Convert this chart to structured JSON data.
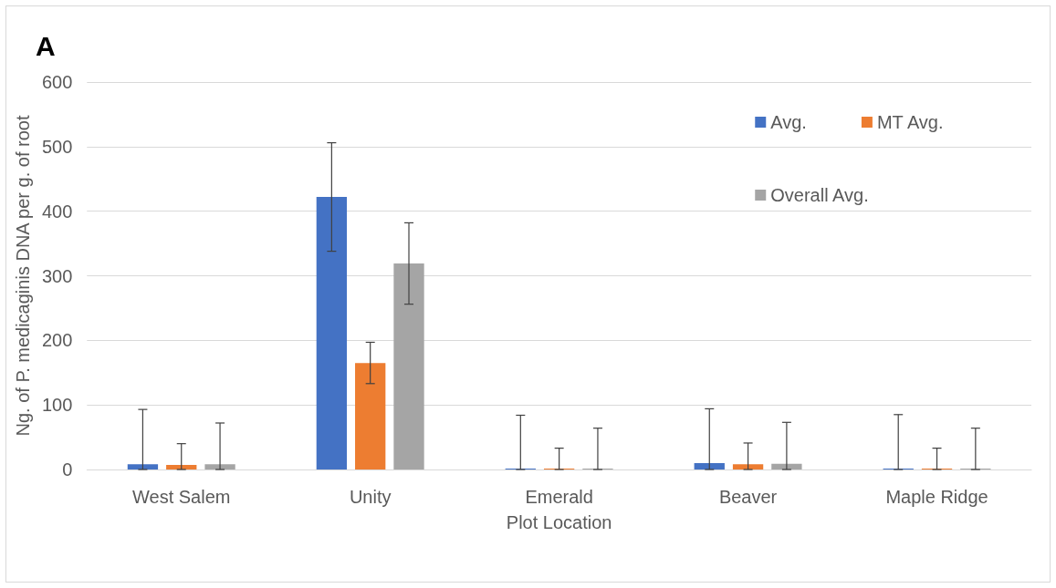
{
  "chart_data": {
    "type": "bar",
    "title": null,
    "annotations": [
      "A"
    ],
    "xlabel": "Plot Location",
    "ylabel": "Ng. of P. medicaginis DNA per g. of root",
    "categories": [
      "West Salem",
      "Unity",
      "Emerald",
      "Beaver",
      "Maple Ridge"
    ],
    "series": [
      {
        "name": "Avg.",
        "color": "#4472c4",
        "values": [
          8,
          422,
          0,
          10,
          0
        ],
        "errors": [
          [
            0,
            93
          ],
          84,
          [
            0,
            84
          ],
          [
            0,
            94
          ],
          [
            0,
            85
          ]
        ]
      },
      {
        "name": "MT Avg.",
        "color": "#ed7d31",
        "values": [
          7,
          165,
          0,
          8,
          0
        ],
        "errors": [
          [
            0,
            40
          ],
          32,
          [
            0,
            33
          ],
          [
            0,
            41
          ],
          [
            0,
            33
          ]
        ]
      },
      {
        "name": "Overall Avg.",
        "color": "#a5a5a5",
        "values": [
          8,
          319,
          0,
          9,
          0
        ],
        "errors": [
          [
            0,
            72
          ],
          63,
          [
            0,
            64
          ],
          [
            0,
            73
          ],
          [
            0,
            64
          ]
        ]
      }
    ],
    "ylim": [
      0,
      600
    ],
    "yticks": [
      0,
      100,
      200,
      300,
      400,
      500,
      600
    ],
    "grid": "y",
    "legend": "top right"
  }
}
